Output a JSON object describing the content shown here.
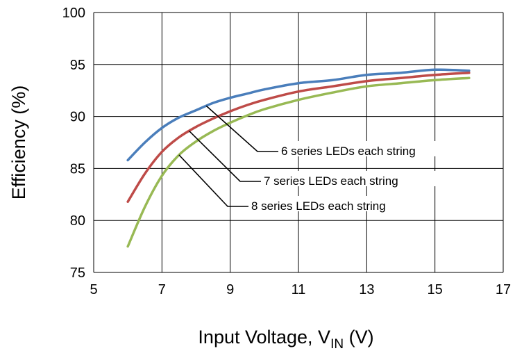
{
  "chart_data": {
    "type": "line",
    "title": "",
    "xlabel": "Input Voltage, V",
    "xlabel_sub": "IN",
    "xlabel_unit": "(V)",
    "ylabel": "Efficiency (%)",
    "xlim": [
      5,
      17
    ],
    "ylim": [
      75,
      100
    ],
    "x_ticks": [
      "5",
      "7",
      "9",
      "11",
      "13",
      "15",
      "17"
    ],
    "y_ticks": [
      "75",
      "80",
      "85",
      "90",
      "95",
      "100"
    ],
    "grid": true,
    "legend": "callouts",
    "series": [
      {
        "name": "6 series LEDs each string",
        "color": "#4a7ebb",
        "x": [
          6,
          6.5,
          7,
          7.5,
          8,
          8.5,
          9,
          9.5,
          10,
          11,
          12,
          13,
          14,
          15,
          16
        ],
        "y": [
          85.8,
          87.5,
          88.9,
          89.9,
          90.6,
          91.3,
          91.8,
          92.2,
          92.6,
          93.2,
          93.5,
          94.0,
          94.2,
          94.5,
          94.4
        ]
      },
      {
        "name": "7 series LEDs each string",
        "color": "#be4b48",
        "x": [
          6,
          6.5,
          7,
          7.5,
          8,
          8.5,
          9,
          9.5,
          10,
          11,
          12,
          13,
          14,
          15,
          16
        ],
        "y": [
          81.8,
          84.5,
          86.6,
          88.0,
          89.0,
          89.8,
          90.5,
          91.1,
          91.6,
          92.4,
          92.9,
          93.4,
          93.7,
          94.0,
          94.2
        ]
      },
      {
        "name": "8 series LEDs each string",
        "color": "#98b954",
        "x": [
          6,
          6.5,
          7,
          7.5,
          8,
          8.5,
          9,
          9.5,
          10,
          11,
          12,
          13,
          14,
          15,
          16
        ],
        "y": [
          77.5,
          81.3,
          84.3,
          86.3,
          87.6,
          88.6,
          89.4,
          90.1,
          90.7,
          91.6,
          92.3,
          92.9,
          93.2,
          93.5,
          93.7
        ]
      }
    ],
    "callouts": [
      {
        "label": "6 series LEDs each string",
        "series": 0,
        "at_x": 8.3
      },
      {
        "label": "7 series LEDs each string",
        "series": 1,
        "at_x": 7.8
      },
      {
        "label": "8 series LEDs each string",
        "series": 2,
        "at_x": 7.5
      }
    ]
  }
}
